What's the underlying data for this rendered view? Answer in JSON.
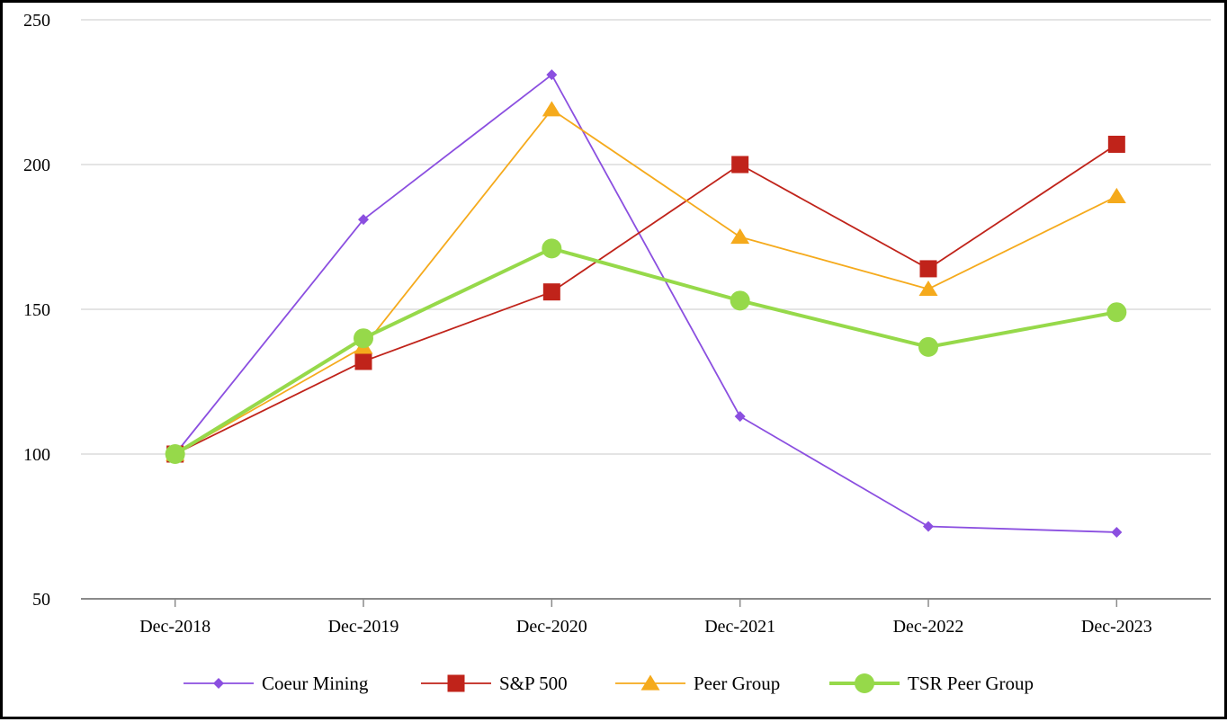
{
  "chart_data": {
    "type": "line",
    "categories": [
      "Dec-2018",
      "Dec-2019",
      "Dec-2020",
      "Dec-2021",
      "Dec-2022",
      "Dec-2023"
    ],
    "ylim": [
      50,
      250
    ],
    "yticks": [
      50,
      100,
      150,
      200,
      250
    ],
    "grid": true,
    "legend_position": "bottom",
    "series": [
      {
        "name": "Coeur Mining",
        "values": [
          100,
          181,
          231,
          113,
          75,
          73
        ],
        "color": "#8B4FE0",
        "marker": "diamond"
      },
      {
        "name": "S&P 500",
        "values": [
          100,
          132,
          156,
          200,
          164,
          207
        ],
        "color": "#C0231A",
        "marker": "square"
      },
      {
        "name": "Peer Group",
        "values": [
          100,
          137,
          219,
          175,
          157,
          189
        ],
        "color": "#F5AA1C",
        "marker": "triangle"
      },
      {
        "name": "TSR Peer Group",
        "values": [
          100,
          140,
          171,
          153,
          137,
          149
        ],
        "color": "#96D94A",
        "marker": "circle"
      }
    ]
  }
}
